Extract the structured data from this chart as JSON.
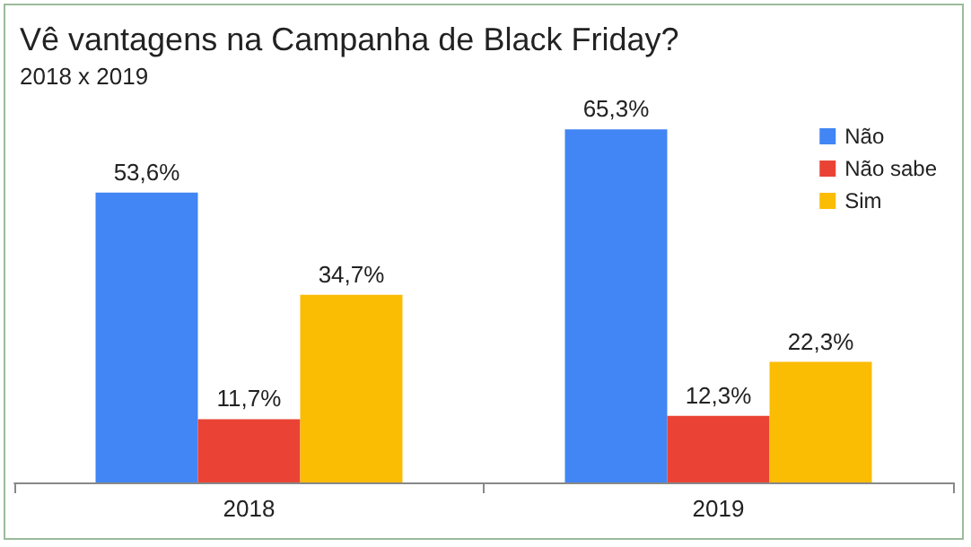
{
  "chart_data": {
    "type": "bar",
    "title": "Vê vantagens na Campanha de Black Friday?",
    "subtitle": "2018 x 2019",
    "categories": [
      "2018",
      "2019"
    ],
    "series": [
      {
        "name": "Não",
        "color": "#4285f4",
        "values": [
          53.6,
          65.3
        ],
        "value_labels": [
          "53,6%",
          "65,3%"
        ]
      },
      {
        "name": "Não sabe",
        "color": "#ea4335",
        "values": [
          11.7,
          12.3
        ],
        "value_labels": [
          "11,7%",
          "12,3%"
        ]
      },
      {
        "name": "Sim",
        "color": "#fbbc04",
        "values": [
          34.7,
          22.3
        ],
        "value_labels": [
          "34,7%",
          "22,3%"
        ]
      }
    ],
    "grid": false,
    "legend": "top right",
    "tick_labels": "x"
  }
}
